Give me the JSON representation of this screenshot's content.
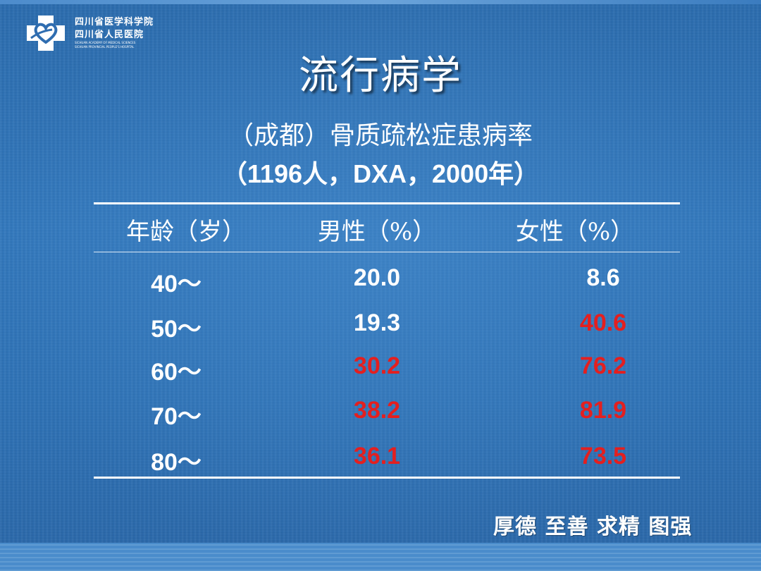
{
  "logo": {
    "icon": "hospital-cross-heart-icon",
    "line1": "四川省医学科学院",
    "line2": "四川省人民医院",
    "en1": "SICHUAN ACADEMY OF MEDICAL SCIENCES",
    "en2": "SICHUAN PROVINCIAL PEOPLE'S HOSPITAL"
  },
  "title": "流行病学",
  "subtitle_line1": "（成都）骨质疏松症患病率",
  "subtitle_line2": "（1196人，DXA，2000年）",
  "table": {
    "headers": [
      "年龄（岁）",
      "男性（%）",
      "女性（%）"
    ],
    "rows": [
      {
        "age": "40～",
        "male": "20.0",
        "female": "8.6"
      },
      {
        "age": "50～",
        "male": "19.3",
        "female": "40.6"
      },
      {
        "age": "60～",
        "male": "30.2",
        "female": "76.2"
      },
      {
        "age": "70～",
        "male": "38.2",
        "female": "81.9"
      },
      {
        "age": "80～",
        "male": "36.1",
        "female": "73.5"
      }
    ],
    "highlight_color": "#e41f1f",
    "normal_color": "#ffffff"
  },
  "motto": "厚德 至善 求精 图强"
}
